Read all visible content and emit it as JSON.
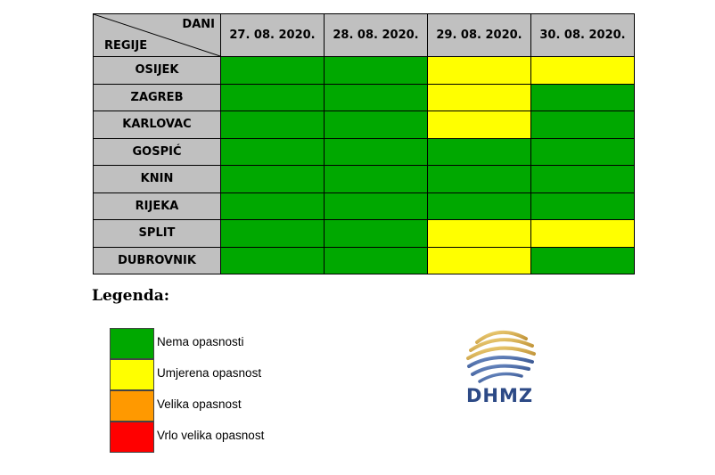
{
  "header": {
    "dani_label": "DANI",
    "regije_label": "REGIJE"
  },
  "dates": [
    "27. 08. 2020.",
    "28. 08. 2020.",
    "29. 08. 2020.",
    "30. 08. 2020."
  ],
  "colors": {
    "green": "#00a800",
    "yellow": "#ffff00",
    "orange": "#ff9900",
    "red": "#ff0000",
    "header_gray": "#c0c0c0"
  },
  "rows": [
    {
      "region": "OSIJEK",
      "levels": [
        "green",
        "green",
        "yellow",
        "yellow"
      ]
    },
    {
      "region": "ZAGREB",
      "levels": [
        "green",
        "green",
        "yellow",
        "green"
      ]
    },
    {
      "region": "KARLOVAC",
      "levels": [
        "green",
        "green",
        "yellow",
        "green"
      ]
    },
    {
      "region": "GOSPIĆ",
      "levels": [
        "green",
        "green",
        "green",
        "green"
      ]
    },
    {
      "region": "KNIN",
      "levels": [
        "green",
        "green",
        "green",
        "green"
      ]
    },
    {
      "region": "RIJEKA",
      "levels": [
        "green",
        "green",
        "green",
        "green"
      ]
    },
    {
      "region": "SPLIT",
      "levels": [
        "green",
        "green",
        "yellow",
        "yellow"
      ]
    },
    {
      "region": "DUBROVNIK",
      "levels": [
        "green",
        "green",
        "yellow",
        "green"
      ]
    }
  ],
  "legend": {
    "title": "Legenda:",
    "items": [
      {
        "color": "green",
        "label": "Nema opasnosti"
      },
      {
        "color": "yellow",
        "label": "Umjerena opasnost"
      },
      {
        "color": "orange",
        "label": "Velika opasnost"
      },
      {
        "color": "red",
        "label": "Vrlo velika opasnost"
      }
    ]
  },
  "logo": {
    "text": "DHMZ"
  }
}
